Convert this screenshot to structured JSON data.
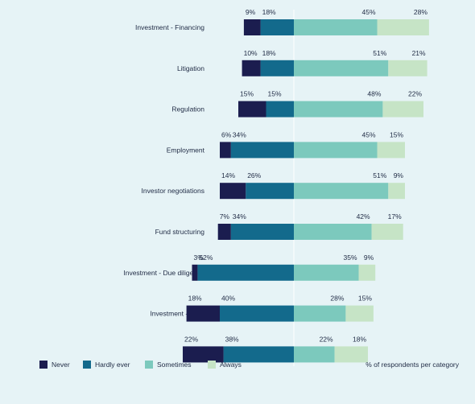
{
  "chart_data": {
    "type": "bar",
    "subtype": "diverging-stacked-horizontal",
    "categories": [
      "Investment - Financing",
      "Litigation",
      "Regulation",
      "Employment",
      "Investor negotiations",
      "Fund structuring",
      "Investment - Due diligence",
      "Investment - M&A",
      "Tax"
    ],
    "series": [
      {
        "name": "Never",
        "color": "#1b1d4f",
        "side": "left",
        "values": [
          9,
          10,
          15,
          6,
          14,
          7,
          3,
          18,
          22
        ]
      },
      {
        "name": "Hardly ever",
        "color": "#136a8c",
        "side": "left",
        "values": [
          18,
          18,
          15,
          34,
          26,
          34,
          52,
          40,
          38
        ]
      },
      {
        "name": "Sometimes",
        "color": "#7cc9bd",
        "side": "right",
        "values": [
          45,
          51,
          48,
          45,
          51,
          42,
          35,
          28,
          22
        ]
      },
      {
        "name": "Always",
        "color": "#c6e4c6",
        "side": "right",
        "values": [
          28,
          21,
          22,
          15,
          9,
          17,
          9,
          15,
          18
        ]
      }
    ],
    "unit": "%",
    "grid": false,
    "legend_position": "bottom-left",
    "footnote": "% of respondents per category"
  }
}
